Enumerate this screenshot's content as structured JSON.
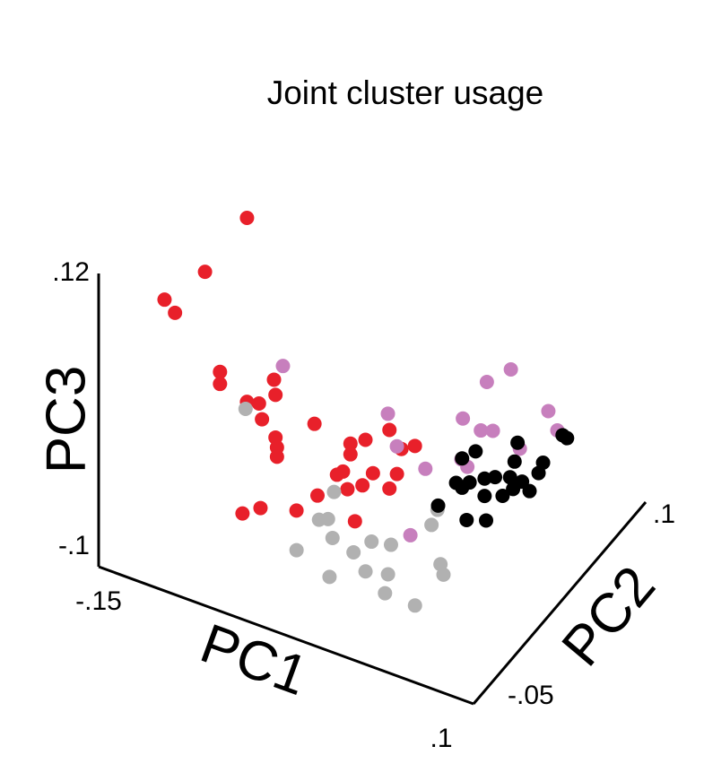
{
  "chart_data": {
    "type": "scatter3d",
    "title": "Joint cluster usage",
    "xlabel": "PC1",
    "ylabel": "PC2",
    "zlabel": "PC3",
    "xlim": [
      -0.15,
      0.1
    ],
    "xticks": [
      {
        "value": -0.15,
        "label": "-.15"
      },
      {
        "value": 0.1,
        "label": ".1"
      }
    ],
    "ylim": [
      -0.05,
      0.1
    ],
    "yticks": [
      {
        "value": -0.05,
        "label": "-.05"
      },
      {
        "value": 0.1,
        "label": ".1"
      }
    ],
    "zlim": [
      -0.1,
      0.12
    ],
    "zticks": [
      {
        "value": -0.1,
        "label": "-.1"
      },
      {
        "value": 0.12,
        "label": ".12"
      }
    ],
    "series": [
      {
        "color": "#e8202a",
        "x": [
          -0.097,
          -0.125,
          -0.152,
          -0.145,
          -0.115,
          -0.115,
          -0.097,
          -0.089,
          -0.079,
          -0.078,
          -0.087,
          -0.078,
          -0.077,
          -0.077,
          -0.052,
          -0.028,
          -0.018,
          -0.002,
          0.015,
          0.006,
          -0.028,
          -0.033,
          -0.037,
          -0.02,
          -0.002,
          0.003,
          -0.013,
          -0.03,
          -0.05,
          -0.064,
          -0.088,
          -0.1,
          -0.025
        ],
        "y": [
          0.01,
          0.01,
          0.01,
          0.01,
          0.01,
          0.01,
          0.01,
          0.01,
          0.01,
          0.01,
          0.01,
          0.01,
          0.01,
          0.01,
          0.01,
          0.01,
          0.01,
          0.01,
          0.01,
          0.01,
          0.01,
          0.01,
          0.01,
          0.01,
          0.01,
          0.01,
          0.01,
          0.01,
          0.01,
          0.01,
          0.01,
          0.01,
          0.01
        ],
        "z": [
          0.123,
          0.071,
          0.039,
          0.032,
          0.0,
          -0.009,
          -0.015,
          -0.013,
          0.009,
          -0.002,
          -0.024,
          -0.034,
          -0.041,
          -0.048,
          -0.013,
          -0.018,
          -0.011,
          0.003,
          -0.002,
          -0.008,
          -0.026,
          -0.041,
          -0.045,
          -0.046,
          -0.041,
          -0.028,
          -0.034,
          -0.053,
          -0.066,
          -0.083,
          -0.091,
          -0.1,
          -0.075
        ]
      },
      {
        "color": "#c77fbd",
        "x": [
          -0.096,
          -0.026,
          0.024,
          0.056,
          0.04,
          0.081,
          0.087,
          0.036,
          0.044,
          -0.02,
          -0.001,
          0.023,
          0.062,
          0.027,
          -0.011
        ],
        "y": [
          0.04,
          0.04,
          0.04,
          0.04,
          0.04,
          0.04,
          0.04,
          0.04,
          0.04,
          0.04,
          0.04,
          0.04,
          0.04,
          0.04,
          0.04
        ],
        "z": [
          -0.018,
          -0.025,
          -0.008,
          0.042,
          0.026,
          0.021,
          0.009,
          -0.012,
          -0.009,
          -0.047,
          -0.056,
          -0.039,
          -0.015,
          -0.043,
          -0.11
        ]
      },
      {
        "color": "#b1b1b1",
        "x": [
          -0.075,
          -0.016,
          -0.02,
          -0.026,
          -0.017,
          -0.041,
          -0.003,
          0.009,
          0.022,
          -0.019,
          0.005,
          0.02,
          0.055,
          0.057,
          0.018,
          0.038,
          0.049,
          0.053
        ],
        "y": [
          -0.02,
          -0.02,
          -0.02,
          -0.02,
          -0.02,
          -0.02,
          -0.02,
          -0.02,
          -0.02,
          -0.02,
          -0.02,
          -0.02,
          -0.02,
          -0.02,
          -0.02,
          -0.02,
          -0.02,
          -0.02
        ],
        "z": [
          0.019,
          -0.019,
          -0.041,
          -0.044,
          -0.054,
          -0.073,
          -0.059,
          -0.046,
          -0.043,
          -0.084,
          -0.07,
          -0.066,
          -0.044,
          -0.051,
          -0.081,
          -0.082,
          -0.017,
          -0.004
        ]
      },
      {
        "color": "#000000",
        "x": [
          0.021,
          0.049,
          0.047,
          0.063,
          0.066,
          0.079,
          0.082,
          0.008,
          0.012,
          0.017,
          0.027,
          0.034,
          0.044,
          0.052,
          0.057,
          0.046,
          0.027,
          0.039,
          -0.004,
          0.015,
          0.028,
          0.012
        ],
        "y": [
          0.055,
          0.055,
          0.055,
          0.055,
          0.055,
          0.055,
          0.055,
          0.055,
          0.055,
          0.055,
          0.055,
          0.055,
          0.055,
          0.055,
          0.055,
          0.055,
          0.055,
          0.055,
          0.055,
          0.055,
          0.055,
          0.055
        ],
        "z": [
          -0.049,
          -0.031,
          -0.046,
          -0.048,
          -0.039,
          -0.013,
          -0.014,
          -0.078,
          -0.08,
          -0.074,
          -0.067,
          -0.063,
          -0.059,
          -0.059,
          -0.064,
          -0.067,
          -0.08,
          -0.075,
          -0.1,
          -0.103,
          -0.098,
          -0.058
        ]
      }
    ]
  }
}
